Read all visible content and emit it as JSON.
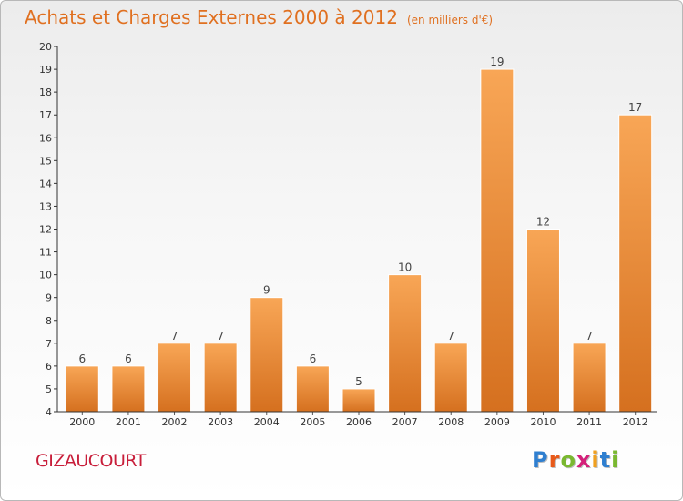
{
  "header": {
    "title": "Achats et Charges Externes 2000 à 2012",
    "subtitle": "(en milliers d'€)"
  },
  "footer": {
    "town": "GIZAUCOURT",
    "logo_text": "Proxiti"
  },
  "colors": {
    "bar_top": "#f8a656",
    "bar_bottom": "#d5701f",
    "title": "#e07020",
    "town": "#c81e3a",
    "logo_letters": [
      "#2f7fd0",
      "#e85a1a",
      "#7ab830",
      "#d4207a",
      "#f0a020",
      "#2f7fd0",
      "#7ab830"
    ]
  },
  "chart_data": {
    "type": "bar",
    "title": "Achats et Charges Externes 2000 à 2012",
    "subtitle": "(en milliers d'€)",
    "categories": [
      "2000",
      "2001",
      "2002",
      "2003",
      "2004",
      "2005",
      "2006",
      "2007",
      "2008",
      "2009",
      "2010",
      "2011",
      "2012"
    ],
    "values": [
      6,
      6,
      7,
      7,
      9,
      6,
      5,
      10,
      7,
      19,
      12,
      7,
      17
    ],
    "ylim": [
      4,
      20
    ],
    "yticks": [
      4,
      5,
      6,
      7,
      8,
      9,
      10,
      11,
      12,
      13,
      14,
      15,
      16,
      17,
      18,
      19,
      20
    ],
    "grid": false,
    "data_labels": true,
    "xlabel": "",
    "ylabel": ""
  }
}
